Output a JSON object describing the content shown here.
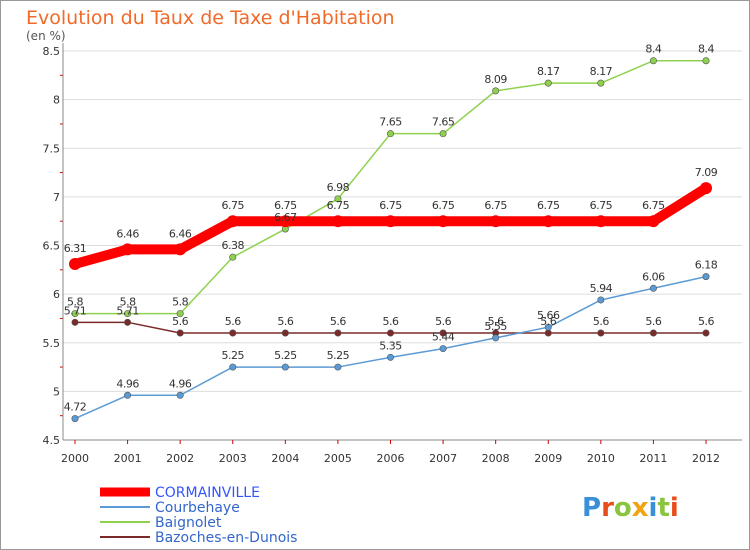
{
  "chart_data": {
    "type": "line",
    "title": "Evolution du Taux de Taxe d'Habitation",
    "subtitle": "(en %)",
    "x": [
      "2000",
      "2001",
      "2002",
      "2003",
      "2004",
      "2005",
      "2006",
      "2007",
      "2008",
      "2009",
      "2010",
      "2011",
      "2012"
    ],
    "yticks": [
      "4.5",
      "5",
      "5.5",
      "6",
      "6.5",
      "7",
      "7.5",
      "8",
      "8.5"
    ],
    "ylim": [
      4.5,
      8.5
    ],
    "grid": "horizontal",
    "legend_position": "bottom-left",
    "series": [
      {
        "name": "CORMAINVILLE",
        "color": "#ff0000",
        "values": [
          6.31,
          6.46,
          6.46,
          6.75,
          6.75,
          6.75,
          6.75,
          6.75,
          6.75,
          6.75,
          6.75,
          6.75,
          7.09
        ],
        "labels": [
          "6.31",
          "6.46",
          "6.46",
          "6.75",
          "6.75",
          "6.75",
          "6.75",
          "6.75",
          "6.75",
          "6.75",
          "6.75",
          "6.75",
          "7.09"
        ]
      },
      {
        "name": "Courbehaye",
        "color": "#5b9bd5",
        "values": [
          4.72,
          4.96,
          4.96,
          5.25,
          5.25,
          5.25,
          5.35,
          5.44,
          5.55,
          5.66,
          5.94,
          6.06,
          6.18
        ],
        "labels": [
          "4.72",
          "4.96",
          "4.96",
          "5.25",
          "5.25",
          "5.25",
          "5.35",
          "5.44",
          "5.55",
          "5.66",
          "5.94",
          "6.06",
          "6.18"
        ]
      },
      {
        "name": "Baignolet",
        "color": "#8fd14f",
        "values": [
          5.8,
          5.8,
          5.8,
          6.38,
          6.67,
          6.98,
          7.65,
          7.65,
          8.09,
          8.17,
          8.17,
          8.4,
          8.4
        ],
        "labels": [
          "5.8",
          "5.8",
          "5.8",
          "6.38",
          "6.67",
          "6.98",
          "7.65",
          "7.65",
          "8.09",
          "8.17",
          "8.17",
          "8.4",
          "8.4"
        ]
      },
      {
        "name": "Bazoches-en-Dunois",
        "color": "#7b2a2a",
        "values": [
          5.71,
          5.71,
          5.6,
          5.6,
          5.6,
          5.6,
          5.6,
          5.6,
          5.6,
          5.6,
          5.6,
          5.6,
          5.6
        ],
        "labels": [
          "5.71",
          "5.71",
          "5.6",
          "5.6",
          "5.6",
          "5.6",
          "5.6",
          "5.6",
          "5.6",
          "5.6",
          "5.6",
          "5.6",
          "5.6"
        ]
      }
    ]
  },
  "logo": {
    "text": "Proxiti"
  }
}
